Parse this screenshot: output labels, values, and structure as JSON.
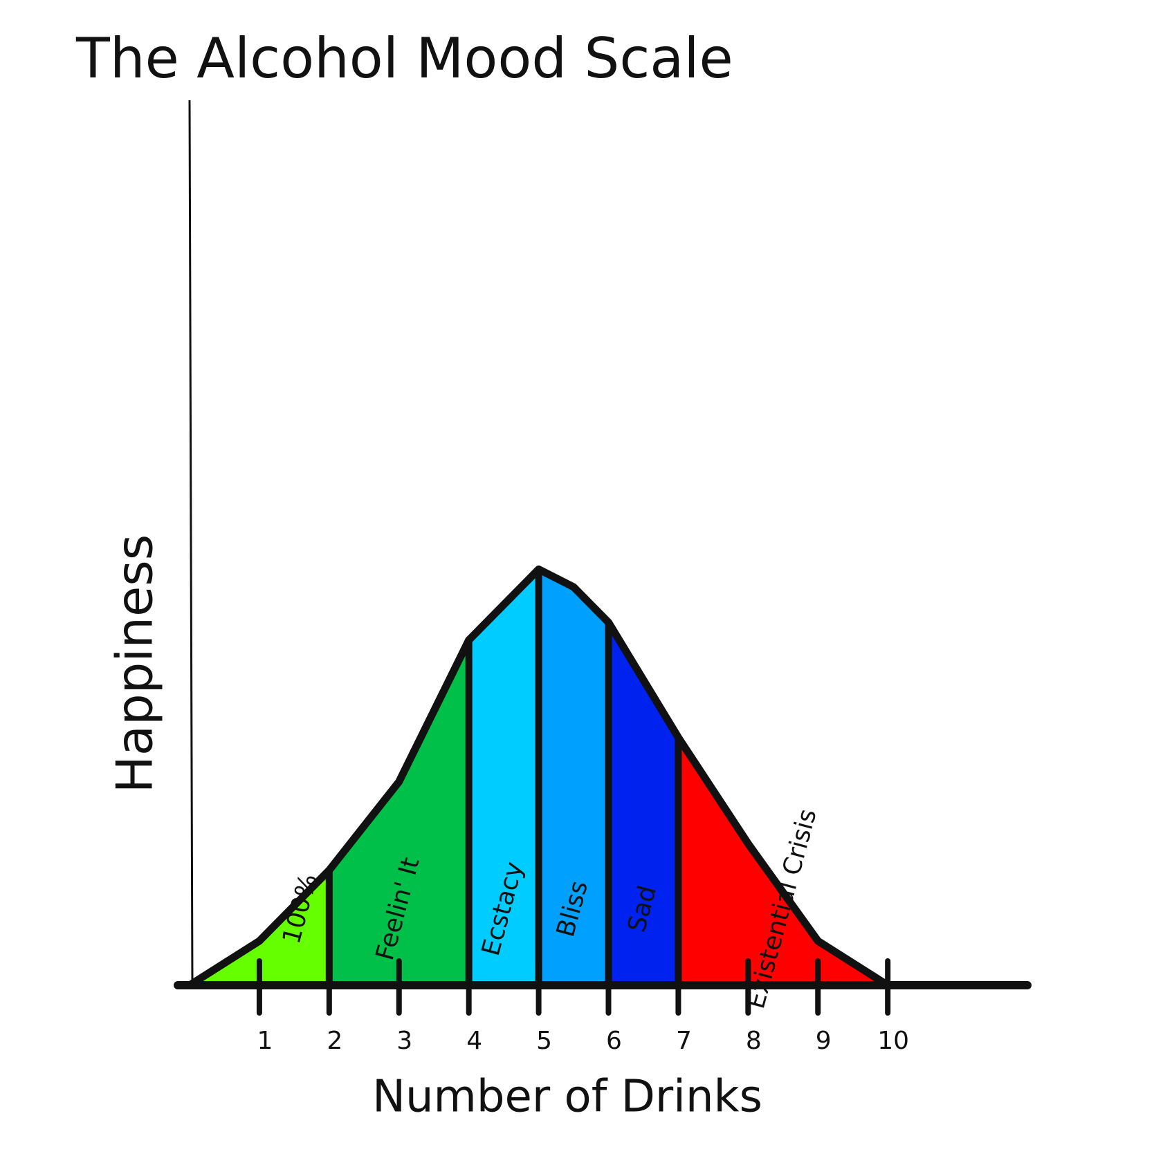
{
  "chart_data": {
    "type": "area",
    "title": "The Alcohol Mood Scale",
    "x_label": "Number of Drinks",
    "y_label": "Happiness",
    "xlim": [
      0,
      12
    ],
    "ylim": [
      0,
      1
    ],
    "xticks": [
      1,
      2,
      3,
      4,
      5,
      6,
      7,
      8,
      9,
      10
    ],
    "curve": {
      "x": [
        0,
        1,
        2,
        3,
        4,
        4.5,
        5,
        5.5,
        6,
        7,
        8,
        9,
        10
      ],
      "y": [
        0,
        0.05,
        0.13,
        0.23,
        0.39,
        0.43,
        0.47,
        0.45,
        0.41,
        0.28,
        0.16,
        0.05,
        0
      ]
    },
    "regions": [
      {
        "name": "100%",
        "start": 0,
        "end": 2,
        "color": "#66ff00"
      },
      {
        "name": "Feelin' It",
        "start": 2,
        "end": 4,
        "color": "#00c04a"
      },
      {
        "name": "Ecstacy",
        "start": 4,
        "end": 5,
        "color": "#00ccff"
      },
      {
        "name": "Bliss",
        "start": 5,
        "end": 6,
        "color": "#00a0ff"
      },
      {
        "name": "Sad",
        "start": 6,
        "end": 7,
        "color": "#0022ee"
      },
      {
        "name": "Existential Crisis",
        "start": 7,
        "end": 10,
        "color": "#ff0000"
      }
    ]
  }
}
